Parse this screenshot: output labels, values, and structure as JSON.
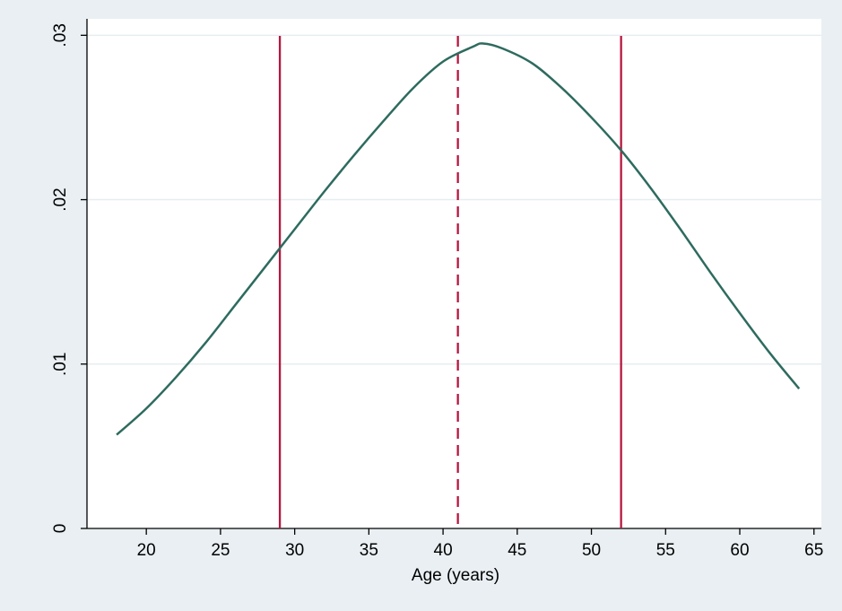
{
  "colors": {
    "background": "#e9eff2",
    "plot_background": "#ffffff",
    "gridline": "#e6eef2",
    "curve": "#2e6b5f",
    "reference_line": "#b5173f",
    "axis": "#000000"
  },
  "chart_data": {
    "type": "line",
    "title": "",
    "xlabel": "Age (years)",
    "ylabel": "",
    "xlim": [
      16,
      65.5
    ],
    "ylim": [
      0,
      0.031
    ],
    "grid": true,
    "x_ticks": [
      20,
      25,
      30,
      35,
      40,
      45,
      50,
      55,
      60,
      65
    ],
    "x_tick_labels": [
      "20",
      "25",
      "30",
      "35",
      "40",
      "45",
      "50",
      "55",
      "60",
      "65"
    ],
    "y_ticks": [
      0,
      0.01,
      0.02,
      0.03
    ],
    "y_tick_labels": [
      "0",
      ".01",
      ".02",
      ".03"
    ],
    "series": [
      {
        "style": "solid",
        "x": [
          18,
          20,
          22,
          24,
          26,
          28,
          30,
          32,
          34,
          36,
          38,
          40,
          42,
          42.7,
          44,
          46,
          48,
          50,
          52,
          54,
          56,
          58,
          60,
          62,
          64
        ],
        "y": [
          0.0057,
          0.0073,
          0.0092,
          0.0113,
          0.0136,
          0.0159,
          0.0182,
          0.0205,
          0.0227,
          0.0248,
          0.0268,
          0.0284,
          0.0293,
          0.0295,
          0.0292,
          0.0283,
          0.0268,
          0.025,
          0.023,
          0.0207,
          0.0182,
          0.0156,
          0.0131,
          0.0107,
          0.0085
        ]
      }
    ],
    "reference_lines": [
      {
        "x": 29,
        "style": "solid"
      },
      {
        "x": 41,
        "style": "dashed"
      },
      {
        "x": 52,
        "style": "solid"
      }
    ]
  }
}
